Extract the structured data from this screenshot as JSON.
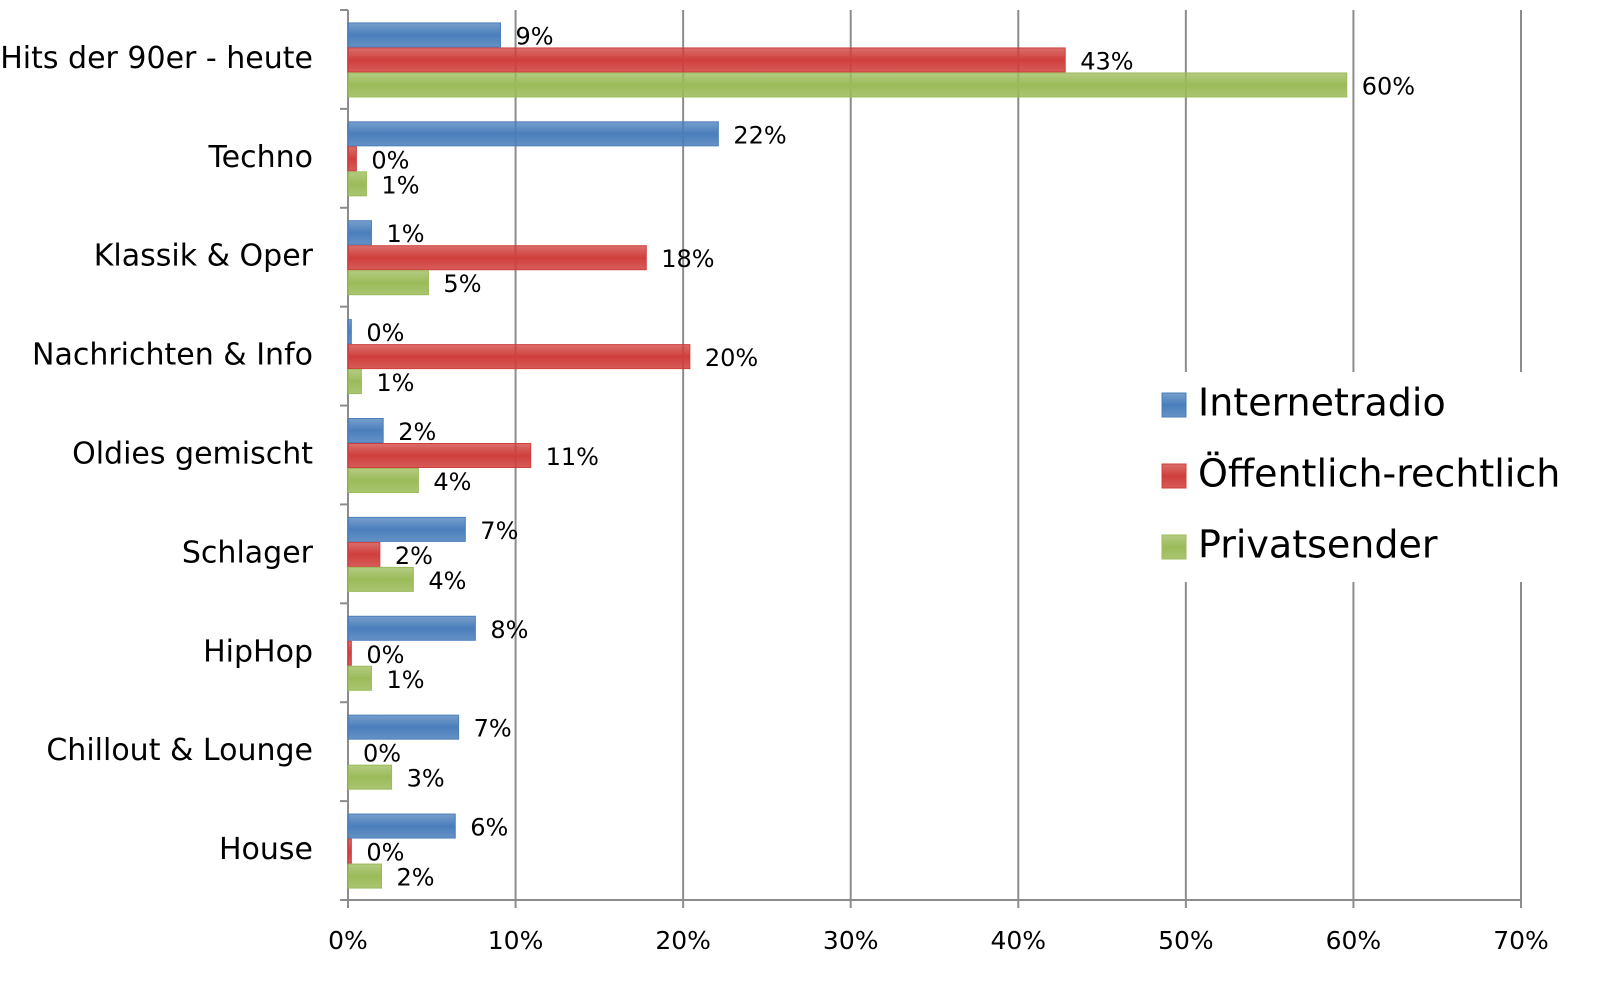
{
  "chart_data": {
    "type": "hbar",
    "categories": [
      "Hits der 90er - heute",
      "Techno",
      "Klassik & Oper",
      "Nachrichten & Info",
      "Oldies gemischt",
      "Schlager",
      "HipHop",
      "Chillout & Lounge",
      "House"
    ],
    "series": [
      {
        "name": "Internetradio",
        "color": "#4a7ebb",
        "values": [
          9.1,
          22.1,
          1.4,
          0.2,
          2.1,
          7.0,
          7.6,
          6.6,
          6.4
        ],
        "value_labels": [
          "9%",
          "22%",
          "1%",
          "0%",
          "2%",
          "7%",
          "8%",
          "7%",
          "6%"
        ]
      },
      {
        "name": "Öffentlich-rechtlich",
        "color": "#cf3f3c",
        "values": [
          42.8,
          0.5,
          17.8,
          20.4,
          10.9,
          1.9,
          0.2,
          0,
          0.2
        ],
        "value_labels": [
          "43%",
          "0%",
          "18%",
          "20%",
          "11%",
          "2%",
          "0%",
          "0%",
          "0%"
        ]
      },
      {
        "name": "Privatsender",
        "color": "#9bbb59",
        "values": [
          59.6,
          1.1,
          4.8,
          0.8,
          4.2,
          3.9,
          1.4,
          2.6,
          2.0
        ],
        "value_labels": [
          "60%",
          "1%",
          "5%",
          "1%",
          "4%",
          "4%",
          "1%",
          "3%",
          "2%"
        ]
      }
    ],
    "xlim": [
      0,
      70
    ],
    "xticks": [
      {
        "value": 0,
        "label": "0%"
      },
      {
        "value": 10,
        "label": "10%"
      },
      {
        "value": 20,
        "label": "20%"
      },
      {
        "value": 30,
        "label": "30%"
      },
      {
        "value": 40,
        "label": "40%"
      },
      {
        "value": 50,
        "label": "50%"
      },
      {
        "value": 60,
        "label": "60%"
      },
      {
        "value": 70,
        "label": "70%"
      }
    ],
    "grid": true,
    "legend": "right"
  }
}
